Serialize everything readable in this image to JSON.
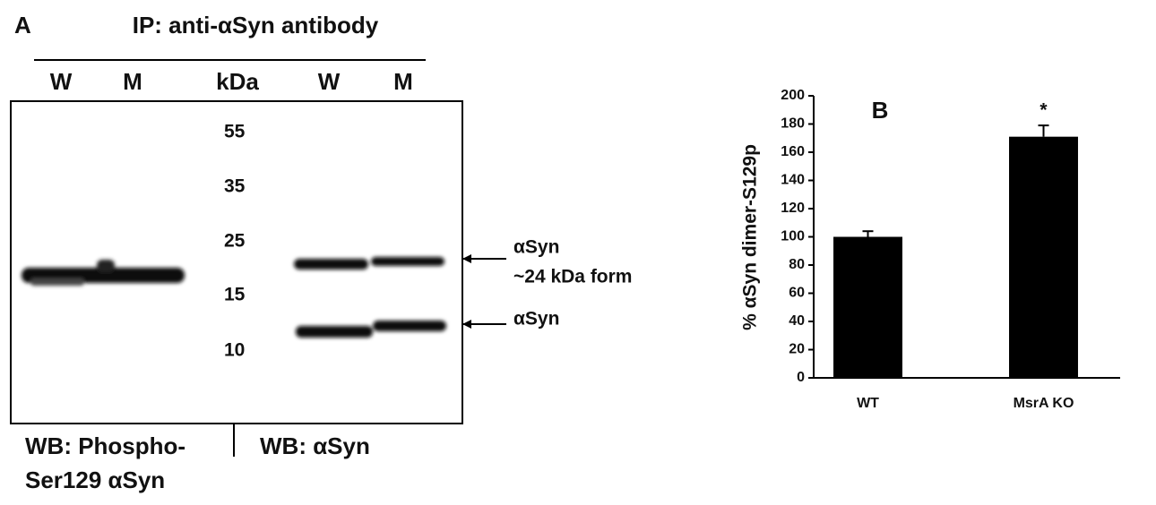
{
  "panel_a": {
    "label": "A",
    "title": "IP: anti-αSyn antibody",
    "lanes_left": [
      "W",
      "M"
    ],
    "kda_header": "kDa",
    "lanes_right": [
      "W",
      "M"
    ],
    "markers": [
      "55",
      "35",
      "25",
      "15",
      "10"
    ],
    "band_labels": [
      "αSyn",
      "~24 kDa form",
      "αSyn"
    ],
    "wb_left": [
      "WB: Phospho-",
      "Ser129 αSyn"
    ],
    "wb_right": "WB: αSyn"
  },
  "chart_data": {
    "type": "bar",
    "label": "B",
    "ylabel": "% αSyn dimer-S129p",
    "categories": [
      "WT",
      "MsrA KO"
    ],
    "values": [
      100,
      171
    ],
    "errors": [
      4,
      8
    ],
    "significance": [
      null,
      "*"
    ],
    "color": "#000000",
    "ylim": [
      0,
      200
    ],
    "yticks": [
      0,
      20,
      40,
      60,
      80,
      100,
      120,
      140,
      160,
      180,
      200
    ]
  }
}
